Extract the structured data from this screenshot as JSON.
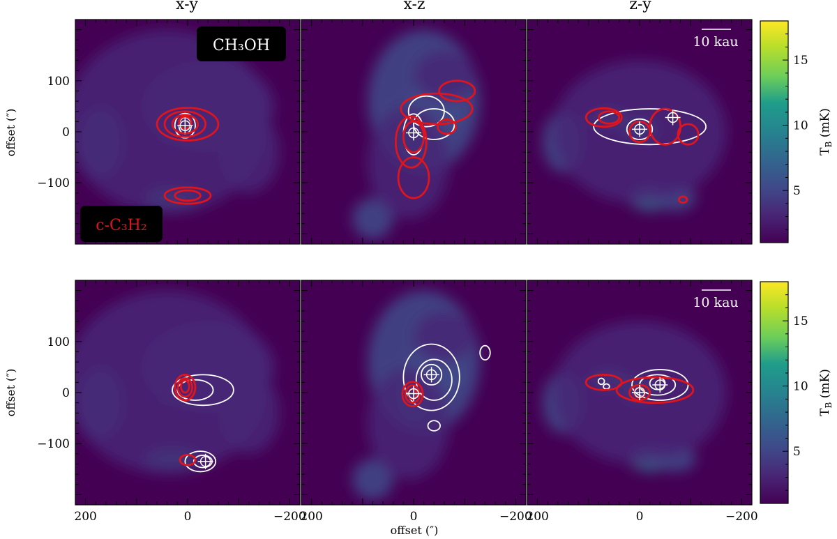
{
  "figure": {
    "column_titles": [
      "x-y",
      "x-z",
      "z-y"
    ],
    "y_axis_label": "offset (″)",
    "x_axis_label": "offset (″)",
    "y_ticks": [
      "100",
      "0",
      "−100"
    ],
    "x_ticks": [
      "200",
      "0",
      "−200"
    ],
    "molecule_label": "CH₃OH",
    "molecule_label_red": "c-C₃H₂",
    "scalebar_label": "10 kau",
    "colorbar": {
      "label": "T",
      "label_sub": "B",
      "label_unit": " (mK)",
      "ticks": [
        5,
        10,
        15
      ],
      "range": [
        1,
        18
      ],
      "colormap": "viridis"
    },
    "colors": {
      "white_contour": "#ffffff",
      "red_contour": "#e0141c",
      "background": "#440154"
    }
  },
  "chart_data": {
    "type": "heatmap",
    "xlim": [
      220,
      -220
    ],
    "ylim": [
      -220,
      220
    ],
    "panels": [
      {
        "row": 0,
        "projection": "x-y",
        "emission_blobs": [
          [
            5,
            10,
            60,
            40,
            0.55
          ],
          [
            30,
            15,
            35,
            25,
            0.45
          ],
          [
            30,
            -130,
            55,
            22,
            0.45
          ],
          [
            170,
            -20,
            45,
            70,
            0.25
          ],
          [
            -40,
            50,
            130,
            90,
            0.18
          ],
          [
            -120,
            -40,
            60,
            80,
            0.16
          ],
          [
            40,
            20,
            200,
            180,
            0.12
          ]
        ],
        "peaks": [
          [
            5,
            12
          ]
        ],
        "white_contours": [
          [
            5,
            12,
            20,
            24
          ],
          [
            5,
            12,
            12,
            16
          ]
        ],
        "red_contours": [
          [
            0,
            15,
            60,
            32
          ],
          [
            5,
            15,
            40,
            25
          ],
          [
            5,
            15,
            25,
            18
          ],
          [
            5,
            18,
            12,
            12
          ],
          [
            0,
            -125,
            45,
            16
          ],
          [
            0,
            -125,
            25,
            10
          ]
        ]
      },
      {
        "row": 0,
        "projection": "x-z",
        "emission_blobs": [
          [
            0,
            0,
            35,
            60,
            0.5
          ],
          [
            -40,
            40,
            60,
            50,
            0.3
          ],
          [
            80,
            -170,
            40,
            40,
            0.25
          ],
          [
            -20,
            60,
            110,
            140,
            0.2
          ],
          [
            10,
            -60,
            80,
            110,
            0.18
          ],
          [
            -60,
            110,
            60,
            50,
            0.18
          ]
        ],
        "peaks": [
          [
            0,
            -2
          ]
        ],
        "white_contours": [
          [
            0,
            -5,
            20,
            40
          ],
          [
            -25,
            40,
            35,
            30
          ],
          [
            -40,
            15,
            40,
            30
          ]
        ],
        "red_contours": [
          [
            5,
            -20,
            30,
            50
          ],
          [
            0,
            -10,
            20,
            30
          ],
          [
            -45,
            45,
            70,
            30
          ],
          [
            -85,
            80,
            35,
            20
          ],
          [
            0,
            -90,
            30,
            40
          ],
          [
            -65,
            10,
            18,
            14
          ]
        ]
      },
      {
        "row": 0,
        "projection": "z-y",
        "emission_blobs": [
          [
            0,
            5,
            35,
            25,
            0.55
          ],
          [
            60,
            25,
            40,
            20,
            0.4
          ],
          [
            -20,
            -130,
            40,
            25,
            0.35
          ],
          [
            -70,
            -130,
            40,
            25,
            0.3
          ],
          [
            150,
            -20,
            40,
            60,
            0.2
          ],
          [
            0,
            0,
            170,
            140,
            0.15
          ]
        ],
        "peaks": [
          [
            0,
            5
          ],
          [
            -65,
            28
          ]
        ],
        "white_contours": [
          [
            -20,
            10,
            110,
            35
          ],
          [
            0,
            5,
            25,
            20
          ]
        ],
        "red_contours": [
          [
            70,
            28,
            35,
            18
          ],
          [
            60,
            28,
            20,
            12
          ],
          [
            -50,
            10,
            30,
            35
          ],
          [
            -95,
            -5,
            20,
            20
          ],
          [
            0,
            0,
            20,
            20
          ],
          [
            -85,
            -133,
            8,
            6
          ]
        ]
      },
      {
        "row": 1,
        "projection": "x-y",
        "emission_blobs": [
          [
            5,
            10,
            60,
            40,
            0.55
          ],
          [
            30,
            15,
            35,
            25,
            0.45
          ],
          [
            30,
            -130,
            55,
            22,
            0.45
          ],
          [
            170,
            -20,
            45,
            70,
            0.25
          ],
          [
            -40,
            50,
            130,
            90,
            0.18
          ],
          [
            -120,
            -40,
            60,
            80,
            0.16
          ],
          [
            40,
            20,
            200,
            180,
            0.12
          ]
        ],
        "peaks": [
          [
            -35,
            -135
          ]
        ],
        "white_contours": [
          [
            -30,
            5,
            60,
            30
          ],
          [
            -15,
            5,
            35,
            20
          ],
          [
            -25,
            -135,
            30,
            20
          ],
          [
            -30,
            -135,
            18,
            12
          ]
        ],
        "red_contours": [
          [
            5,
            10,
            20,
            25
          ],
          [
            5,
            10,
            14,
            18
          ],
          [
            5,
            12,
            8,
            12
          ],
          [
            0,
            -132,
            15,
            10
          ]
        ]
      },
      {
        "row": 1,
        "projection": "x-z",
        "emission_blobs": [
          [
            0,
            0,
            35,
            60,
            0.5
          ],
          [
            -40,
            40,
            60,
            50,
            0.3
          ],
          [
            80,
            -170,
            40,
            40,
            0.25
          ],
          [
            -20,
            60,
            110,
            140,
            0.2
          ],
          [
            10,
            -60,
            80,
            110,
            0.18
          ],
          [
            -60,
            110,
            60,
            50,
            0.18
          ]
        ],
        "peaks": [
          [
            -35,
            35
          ],
          [
            0,
            -2
          ]
        ],
        "white_contours": [
          [
            -35,
            30,
            55,
            65
          ],
          [
            -40,
            25,
            35,
            40
          ],
          [
            -35,
            35,
            20,
            20
          ],
          [
            -140,
            78,
            10,
            14
          ],
          [
            -40,
            -65,
            12,
            10
          ]
        ],
        "red_contours": [
          [
            2,
            -3,
            20,
            24
          ],
          [
            2,
            -3,
            14,
            17
          ],
          [
            2,
            -3,
            8,
            10
          ]
        ]
      },
      {
        "row": 1,
        "projection": "z-y",
        "emission_blobs": [
          [
            0,
            5,
            35,
            25,
            0.55
          ],
          [
            60,
            25,
            40,
            20,
            0.4
          ],
          [
            -20,
            -130,
            40,
            25,
            0.35
          ],
          [
            -70,
            -130,
            40,
            25,
            0.3
          ],
          [
            150,
            -20,
            40,
            60,
            0.2
          ],
          [
            0,
            0,
            170,
            140,
            0.15
          ]
        ],
        "peaks": [
          [
            0,
            0
          ],
          [
            -40,
            15
          ]
        ],
        "white_contours": [
          [
            -40,
            15,
            55,
            30
          ],
          [
            -35,
            15,
            35,
            20
          ],
          [
            -35,
            18,
            15,
            12
          ],
          [
            75,
            22,
            6,
            6
          ],
          [
            65,
            12,
            6,
            5
          ]
        ],
        "red_contours": [
          [
            70,
            20,
            35,
            15
          ],
          [
            -30,
            5,
            75,
            25
          ],
          [
            0,
            0,
            20,
            15
          ],
          [
            0,
            0,
            10,
            10
          ]
        ]
      }
    ]
  }
}
